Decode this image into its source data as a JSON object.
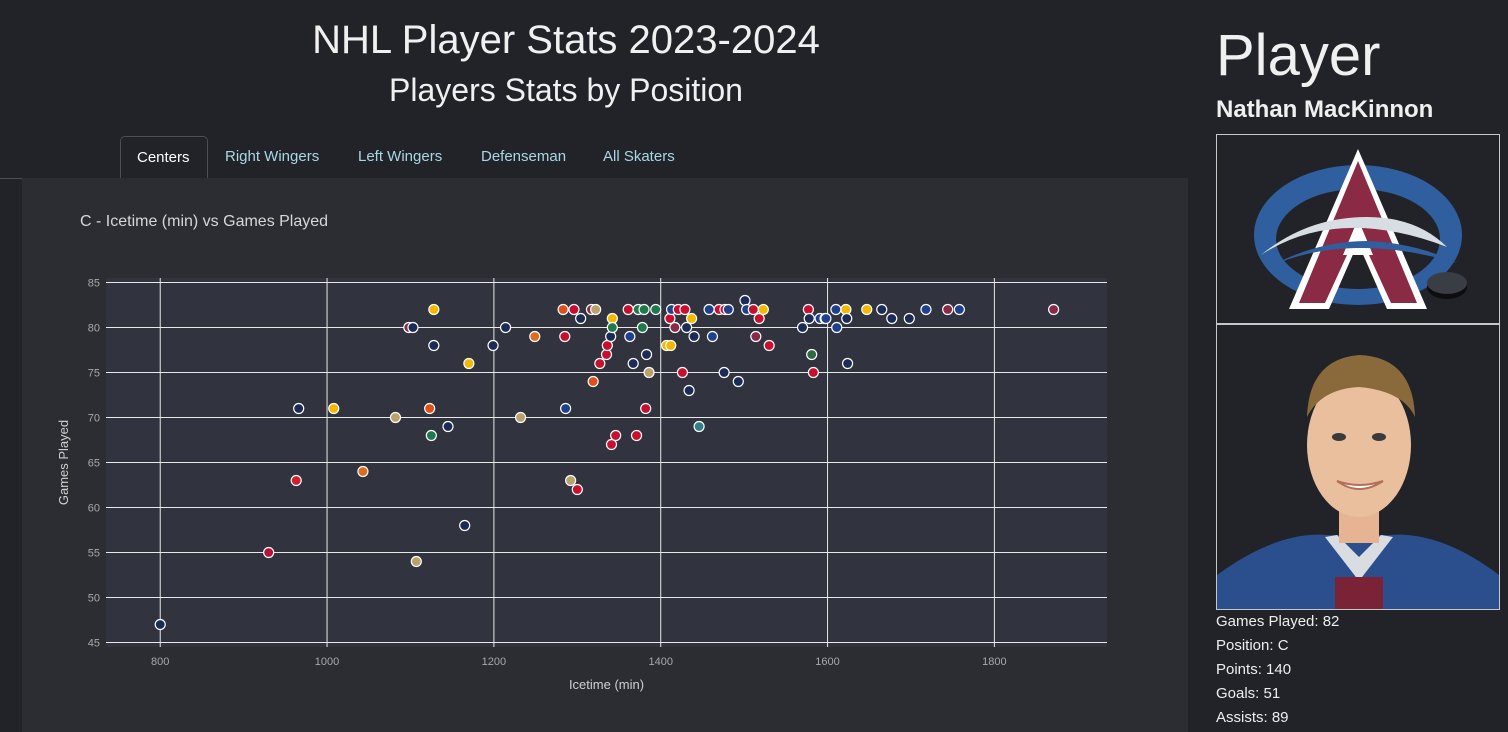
{
  "header": {
    "title": "NHL Player Stats 2023-2024",
    "subtitle": "Players Stats by Position"
  },
  "tabs": [
    {
      "label": "Centers",
      "active": true
    },
    {
      "label": "Right Wingers",
      "active": false
    },
    {
      "label": "Left Wingers",
      "active": false
    },
    {
      "label": "Defenseman",
      "active": false
    },
    {
      "label": "All Skaters",
      "active": false
    }
  ],
  "colors": {
    "background": "#212328",
    "card": "#2b2d33",
    "plot": "#31343e",
    "tab_text": "#a9d7e6"
  },
  "chart_data": {
    "type": "scatter",
    "title": "C - Icetime (min) vs Games Played",
    "xlabel": "Icetime (min)",
    "ylabel": "Games Played",
    "xlim": [
      735,
      1935
    ],
    "ylim": [
      44.5,
      85.5
    ],
    "xticks": [
      800,
      1000,
      1200,
      1400,
      1600,
      1800
    ],
    "yticks": [
      45,
      50,
      55,
      60,
      65,
      70,
      75,
      80,
      85
    ],
    "grid": true,
    "points": [
      {
        "x": 800,
        "y": 47,
        "c": "#1b2b57"
      },
      {
        "x": 930,
        "y": 55,
        "c": "#b3123a"
      },
      {
        "x": 963,
        "y": 63,
        "c": "#d11f2f"
      },
      {
        "x": 966,
        "y": 71,
        "c": "#1b2b57"
      },
      {
        "x": 1008,
        "y": 71,
        "c": "#f5b800"
      },
      {
        "x": 1043,
        "y": 64,
        "c": "#e06b1c"
      },
      {
        "x": 1082,
        "y": 70,
        "c": "#b9a26b"
      },
      {
        "x": 1098,
        "y": 80,
        "c": "#8a2a44"
      },
      {
        "x": 1103,
        "y": 80,
        "c": "#1b2b57"
      },
      {
        "x": 1107,
        "y": 54,
        "c": "#b9a26b"
      },
      {
        "x": 1123,
        "y": 71,
        "c": "#e0501c"
      },
      {
        "x": 1125,
        "y": 68,
        "c": "#20794a"
      },
      {
        "x": 1128,
        "y": 82,
        "c": "#f5b800"
      },
      {
        "x": 1128,
        "y": 78,
        "c": "#1b2b57"
      },
      {
        "x": 1145,
        "y": 69,
        "c": "#1b2b57"
      },
      {
        "x": 1165,
        "y": 58,
        "c": "#1b2b57"
      },
      {
        "x": 1170,
        "y": 76,
        "c": "#f5b800"
      },
      {
        "x": 1199,
        "y": 78,
        "c": "#1b2b57"
      },
      {
        "x": 1214,
        "y": 80,
        "c": "#1b2b57"
      },
      {
        "x": 1232,
        "y": 70,
        "c": "#b9a26b"
      },
      {
        "x": 1249,
        "y": 79,
        "c": "#e06b1c"
      },
      {
        "x": 1283,
        "y": 82,
        "c": "#e0501c"
      },
      {
        "x": 1285,
        "y": 79,
        "c": "#c8102e"
      },
      {
        "x": 1286,
        "y": 71,
        "c": "#1f3f8f"
      },
      {
        "x": 1292,
        "y": 63,
        "c": "#b9a26b"
      },
      {
        "x": 1296,
        "y": 82,
        "c": "#c8102e"
      },
      {
        "x": 1300,
        "y": 62,
        "c": "#c8102e"
      },
      {
        "x": 1304,
        "y": 81,
        "c": "#1b2b57"
      },
      {
        "x": 1317,
        "y": 82,
        "c": "#8a2a44"
      },
      {
        "x": 1319,
        "y": 74,
        "c": "#e0501c"
      },
      {
        "x": 1322,
        "y": 82,
        "c": "#b9a26b"
      },
      {
        "x": 1327,
        "y": 76,
        "c": "#c8102e"
      },
      {
        "x": 1335,
        "y": 77,
        "c": "#c8102e"
      },
      {
        "x": 1336,
        "y": 78,
        "c": "#c8102e"
      },
      {
        "x": 1340,
        "y": 79,
        "c": "#1b2b57"
      },
      {
        "x": 1341,
        "y": 67,
        "c": "#c8102e"
      },
      {
        "x": 1342,
        "y": 81,
        "c": "#f5b800"
      },
      {
        "x": 1342,
        "y": 80,
        "c": "#20794a"
      },
      {
        "x": 1346,
        "y": 68,
        "c": "#c8102e"
      },
      {
        "x": 1361,
        "y": 82,
        "c": "#c8102e"
      },
      {
        "x": 1363,
        "y": 79,
        "c": "#1f3f8f"
      },
      {
        "x": 1367,
        "y": 76,
        "c": "#1b2b57"
      },
      {
        "x": 1371,
        "y": 68,
        "c": "#c8102e"
      },
      {
        "x": 1373,
        "y": 82,
        "c": "#20794a"
      },
      {
        "x": 1378,
        "y": 80,
        "c": "#20794a"
      },
      {
        "x": 1380,
        "y": 82,
        "c": "#20794a"
      },
      {
        "x": 1382,
        "y": 71,
        "c": "#c8102e"
      },
      {
        "x": 1383,
        "y": 77,
        "c": "#1b2b57"
      },
      {
        "x": 1386,
        "y": 75,
        "c": "#b9a26b"
      },
      {
        "x": 1394,
        "y": 82,
        "c": "#20794a"
      },
      {
        "x": 1407,
        "y": 78,
        "c": "#f5b800"
      },
      {
        "x": 1411,
        "y": 81,
        "c": "#c8102e"
      },
      {
        "x": 1412,
        "y": 78,
        "c": "#f5b800"
      },
      {
        "x": 1413,
        "y": 82,
        "c": "#1f3f8f"
      },
      {
        "x": 1417,
        "y": 80,
        "c": "#8a2a44"
      },
      {
        "x": 1421,
        "y": 82,
        "c": "#c8102e"
      },
      {
        "x": 1426,
        "y": 75,
        "c": "#c8102e"
      },
      {
        "x": 1429,
        "y": 82,
        "c": "#c8102e"
      },
      {
        "x": 1431,
        "y": 80,
        "c": "#1b2b57"
      },
      {
        "x": 1434,
        "y": 73,
        "c": "#1b2b57"
      },
      {
        "x": 1437,
        "y": 81,
        "c": "#f5b800"
      },
      {
        "x": 1440,
        "y": 79,
        "c": "#1b2b57"
      },
      {
        "x": 1446,
        "y": 69,
        "c": "#2e7f86"
      },
      {
        "x": 1458,
        "y": 82,
        "c": "#1f3f8f"
      },
      {
        "x": 1462,
        "y": 79,
        "c": "#1f3f8f"
      },
      {
        "x": 1470,
        "y": 82,
        "c": "#c8102e"
      },
      {
        "x": 1476,
        "y": 75,
        "c": "#1b2b57"
      },
      {
        "x": 1477,
        "y": 82,
        "c": "#c8102e"
      },
      {
        "x": 1481,
        "y": 82,
        "c": "#1f3f8f"
      },
      {
        "x": 1493,
        "y": 74,
        "c": "#1b2b57"
      },
      {
        "x": 1501,
        "y": 83,
        "c": "#1b2b57"
      },
      {
        "x": 1503,
        "y": 82,
        "c": "#1f3f8f"
      },
      {
        "x": 1511,
        "y": 82,
        "c": "#c8102e"
      },
      {
        "x": 1514,
        "y": 79,
        "c": "#8a2a44"
      },
      {
        "x": 1518,
        "y": 81,
        "c": "#c8102e"
      },
      {
        "x": 1523,
        "y": 82,
        "c": "#f5b800"
      },
      {
        "x": 1530,
        "y": 78,
        "c": "#c8102e"
      },
      {
        "x": 1570,
        "y": 80,
        "c": "#1b2b57"
      },
      {
        "x": 1577,
        "y": 82,
        "c": "#c8102e"
      },
      {
        "x": 1578,
        "y": 81,
        "c": "#1b2b57"
      },
      {
        "x": 1581,
        "y": 77,
        "c": "#2e6b45"
      },
      {
        "x": 1583,
        "y": 75,
        "c": "#c8102e"
      },
      {
        "x": 1591,
        "y": 81,
        "c": "#1f3f8f"
      },
      {
        "x": 1597,
        "y": 81,
        "c": "#1f3f8f"
      },
      {
        "x": 1598,
        "y": 81,
        "c": "#1f3f8f"
      },
      {
        "x": 1610,
        "y": 82,
        "c": "#1f3f8f"
      },
      {
        "x": 1611,
        "y": 80,
        "c": "#1f3f8f"
      },
      {
        "x": 1622,
        "y": 82,
        "c": "#f5b800"
      },
      {
        "x": 1623,
        "y": 81,
        "c": "#1b2b57"
      },
      {
        "x": 1624,
        "y": 76,
        "c": "#1b2b57"
      },
      {
        "x": 1647,
        "y": 82,
        "c": "#f5b800"
      },
      {
        "x": 1665,
        "y": 82,
        "c": "#1b2b57"
      },
      {
        "x": 1677,
        "y": 81,
        "c": "#1b2b57"
      },
      {
        "x": 1698,
        "y": 81,
        "c": "#1b2b57"
      },
      {
        "x": 1718,
        "y": 82,
        "c": "#1f3f8f"
      },
      {
        "x": 1744,
        "y": 82,
        "c": "#8a2a44"
      },
      {
        "x": 1758,
        "y": 82,
        "c": "#1f3f8f"
      },
      {
        "x": 1871,
        "y": 82,
        "c": "#8a2a44"
      }
    ]
  },
  "sidebar": {
    "heading": "Player",
    "player_name": "Nathan MacKinnon",
    "stats": [
      "Games Played: 82",
      "Position: C",
      "Points: 140",
      "Goals: 51",
      "Assists: 89"
    ]
  }
}
